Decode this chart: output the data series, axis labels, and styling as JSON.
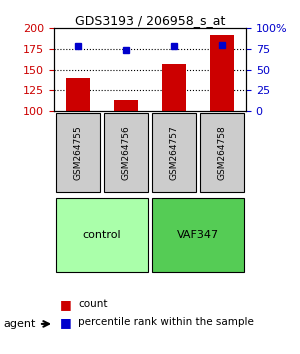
{
  "title": "GDS3193 / 206958_s_at",
  "samples": [
    "GSM264755",
    "GSM264756",
    "GSM264757",
    "GSM264758"
  ],
  "counts": [
    140,
    113,
    157,
    192
  ],
  "percentile_ranks": [
    78,
    74,
    79,
    80
  ],
  "count_baseline": 100,
  "count_ylim": [
    100,
    200
  ],
  "count_yticks": [
    100,
    125,
    150,
    175,
    200
  ],
  "pct_ylim": [
    0,
    100
  ],
  "pct_yticks": [
    0,
    25,
    50,
    75,
    100
  ],
  "pct_yticklabels": [
    "0",
    "25",
    "50",
    "75",
    "100%"
  ],
  "bar_color": "#cc0000",
  "dot_color": "#0000cc",
  "groups": [
    {
      "label": "control",
      "indices": [
        0,
        1
      ],
      "color": "#aaffaa"
    },
    {
      "label": "VAF347",
      "indices": [
        2,
        3
      ],
      "color": "#55cc55"
    }
  ],
  "agent_label": "agent",
  "legend_count_label": "count",
  "legend_pct_label": "percentile rank within the sample",
  "grid_color": "#000000",
  "background_color": "#ffffff",
  "plot_bg_color": "#ffffff",
  "sample_box_color": "#cccccc"
}
